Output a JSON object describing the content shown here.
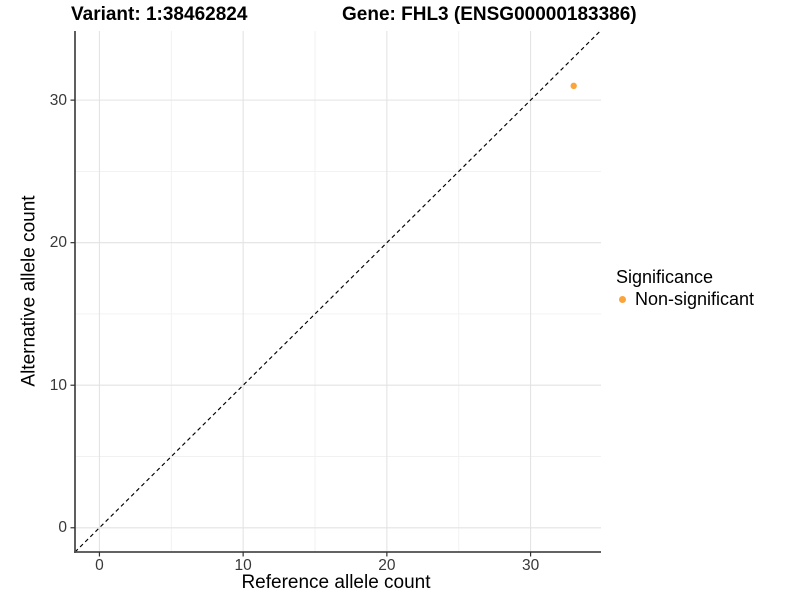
{
  "chart_data": {
    "type": "scatter",
    "title_left": "Variant: 1:38462824",
    "title_right": "Gene: FHL3 (ENSG00000183386)",
    "xlabel": "Reference allele count",
    "ylabel": "Alternative allele count",
    "xlim": [
      -1.7,
      34.9
    ],
    "ylim": [
      -1.7,
      34.85
    ],
    "x_major_ticks": [
      0,
      10,
      20,
      30
    ],
    "x_minor_ticks": [
      5,
      15,
      25
    ],
    "y_major_ticks": [
      0,
      10,
      20,
      30
    ],
    "y_minor_ticks": [
      5,
      15,
      25
    ],
    "grid": true,
    "legend_position": "right",
    "points": [
      {
        "x": 33,
        "y": 31,
        "series": "Non-significant",
        "color": "#FAA43A"
      }
    ],
    "abline": {
      "slope": 1,
      "intercept": 0,
      "style": "dashed",
      "color": "#000000"
    },
    "legend": {
      "title": "Significance",
      "items": [
        {
          "label": "Non-significant",
          "color": "#FAA43A"
        }
      ]
    },
    "colors": {
      "background": "#FFFFFF",
      "major_grid": "#E3E3E3",
      "minor_grid": "#F1F1F1",
      "axis_line": "#4D4D4D",
      "tick_mark": "#333333",
      "tick_text": "#383838",
      "point_orange": "#FAA43A"
    }
  }
}
